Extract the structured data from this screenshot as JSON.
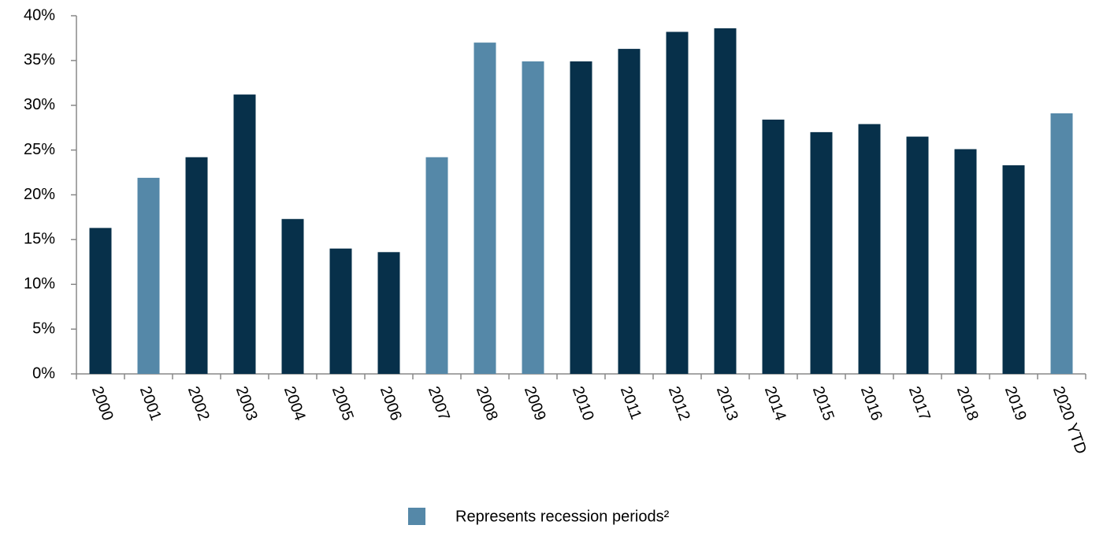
{
  "chart_data": {
    "type": "bar",
    "categories": [
      "2000",
      "2001",
      "2002",
      "2003",
      "2004",
      "2005",
      "2006",
      "2007",
      "2008",
      "2009",
      "2010",
      "2011",
      "2012",
      "2013",
      "2014",
      "2015",
      "2016",
      "2017",
      "2018",
      "2019",
      "2020 YTD"
    ],
    "values": [
      16.3,
      21.9,
      24.2,
      31.2,
      17.3,
      14.0,
      13.6,
      24.2,
      37.0,
      34.9,
      34.9,
      36.3,
      38.2,
      38.6,
      28.4,
      27.0,
      27.9,
      26.5,
      25.1,
      23.3,
      29.1
    ],
    "colors": [
      "#07304a",
      "#5588a8",
      "#07304a",
      "#07304a",
      "#07304a",
      "#07304a",
      "#07304a",
      "#5588a8",
      "#5588a8",
      "#5588a8",
      "#07304a",
      "#07304a",
      "#07304a",
      "#07304a",
      "#07304a",
      "#07304a",
      "#07304a",
      "#07304a",
      "#07304a",
      "#07304a",
      "#5588a8"
    ],
    "ylim": [
      0,
      40
    ],
    "yticks": [
      {
        "value": 0,
        "label": "0%"
      },
      {
        "value": 5,
        "label": "5%"
      },
      {
        "value": 10,
        "label": "10%"
      },
      {
        "value": 15,
        "label": "15%"
      },
      {
        "value": 20,
        "label": "20%"
      },
      {
        "value": 25,
        "label": "25%"
      },
      {
        "value": 30,
        "label": "30%"
      },
      {
        "value": 35,
        "label": "35%"
      },
      {
        "value": 40,
        "label": "40%"
      }
    ],
    "grid": false,
    "legend": {
      "label": "Represents recession periods²",
      "color": "#5588a8"
    }
  }
}
